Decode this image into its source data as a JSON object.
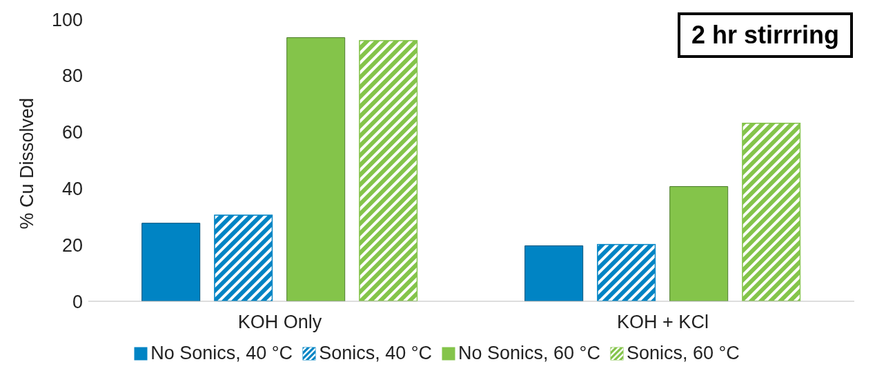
{
  "chart_data": {
    "type": "bar",
    "ylabel": "% Cu Dissolved",
    "categories": [
      "KOH Only",
      "KOH + KCl"
    ],
    "series": [
      {
        "name": "No Sonics, 40 °C",
        "color": "#0084c4",
        "values": [
          27.7,
          19.7
        ]
      },
      {
        "name": "Sonics, 40 °C",
        "color": "#0084c4",
        "values": [
          30.6,
          20.2
        ]
      },
      {
        "name": "No Sonics, 60 °C",
        "color": "#84c44a",
        "values": [
          93.5,
          40.7
        ]
      },
      {
        "name": "Sonics, 60 °C",
        "color": "#84c44a",
        "values": [
          92.5,
          63.2
        ]
      }
    ],
    "ylim": [
      0,
      100
    ],
    "yticks": [
      0,
      20,
      40,
      60,
      80,
      100
    ],
    "grid": false,
    "legend": "bottom",
    "annotations": [
      "2 hr stirrring"
    ]
  }
}
